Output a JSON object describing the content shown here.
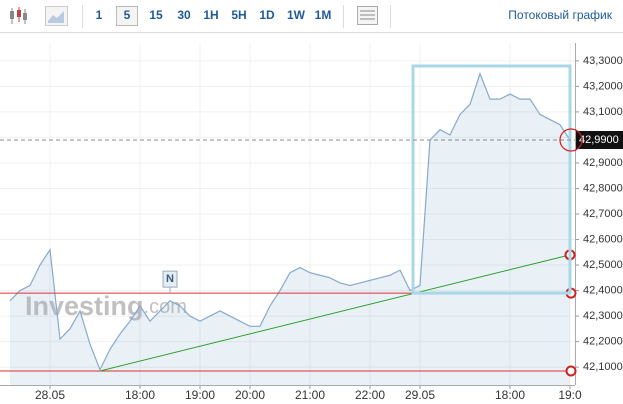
{
  "toolbar": {
    "intervals": [
      "1",
      "5",
      "15",
      "30",
      "1H",
      "5H",
      "1D",
      "1W",
      "1M"
    ],
    "selected_index": 1,
    "stream_label": "Потоковый график"
  },
  "chart_data": {
    "type": "area",
    "watermark": [
      "Investing",
      ".com"
    ],
    "categories": [
      null,
      null,
      null,
      null,
      "28.05",
      null,
      null,
      null,
      null,
      null,
      null,
      null,
      null,
      "18:00",
      null,
      null,
      null,
      null,
      null,
      "19:00",
      null,
      null,
      null,
      null,
      "20:00",
      null,
      null,
      null,
      null,
      null,
      "21:00",
      null,
      null,
      null,
      null,
      null,
      "22:00",
      null,
      null,
      null,
      null,
      "29.05",
      null,
      null,
      null,
      null,
      null,
      null,
      null,
      null,
      "18:00",
      null,
      null,
      null,
      null,
      null,
      "19:0"
    ],
    "series": [
      {
        "color": "#86aacb",
        "values": [
          42.36,
          42.4,
          42.42,
          42.5,
          42.56,
          42.21,
          42.25,
          42.32,
          42.19,
          42.09,
          42.17,
          42.23,
          42.28,
          42.34,
          42.28,
          42.32,
          42.36,
          42.34,
          42.3,
          42.28,
          42.3,
          42.32,
          42.3,
          42.28,
          42.26,
          42.26,
          42.34,
          42.4,
          42.47,
          42.49,
          42.47,
          42.46,
          42.45,
          42.43,
          42.42,
          42.43,
          42.44,
          42.45,
          42.46,
          42.48,
          42.4,
          42.42,
          42.99,
          43.03,
          43.01,
          43.09,
          43.13,
          43.25,
          43.15,
          43.15,
          43.17,
          43.15,
          43.15,
          43.09,
          43.07,
          43.05,
          42.99
        ]
      }
    ],
    "ylim": [
      42.03,
      43.37
    ],
    "yticks": [
      {
        "value": 42.1,
        "label": "42,1000"
      },
      {
        "value": 42.2,
        "label": "42,2000"
      },
      {
        "value": 42.3,
        "label": "42,3000"
      },
      {
        "value": 42.4,
        "label": "42,4000"
      },
      {
        "value": 42.5,
        "label": "42,5000"
      },
      {
        "value": 42.6,
        "label": "42,6000"
      },
      {
        "value": 42.7,
        "label": "42,7000"
      },
      {
        "value": 42.8,
        "label": "42,8000"
      },
      {
        "value": 42.9,
        "label": "42,9000"
      },
      {
        "value": 43.0,
        "label": "43,0000"
      },
      {
        "value": 43.1,
        "label": "43,1000"
      },
      {
        "value": 43.2,
        "label": "43,2000"
      },
      {
        "value": 43.3,
        "label": "43,3000"
      }
    ],
    "grid": true,
    "last_price": {
      "value": 42.99,
      "label": "42,9900"
    },
    "levels": [
      42.085,
      42.39
    ],
    "trend_line": {
      "from": [
        9,
        42.085
      ],
      "to": [
        56,
        42.54
      ],
      "color": "#2ca02c"
    },
    "box": {
      "from": [
        40,
        42.39
      ],
      "to": [
        56,
        43.28
      ],
      "color": "#a8d8e8"
    },
    "event_marker": {
      "index": 16,
      "value": 42.39,
      "label": "N"
    }
  }
}
